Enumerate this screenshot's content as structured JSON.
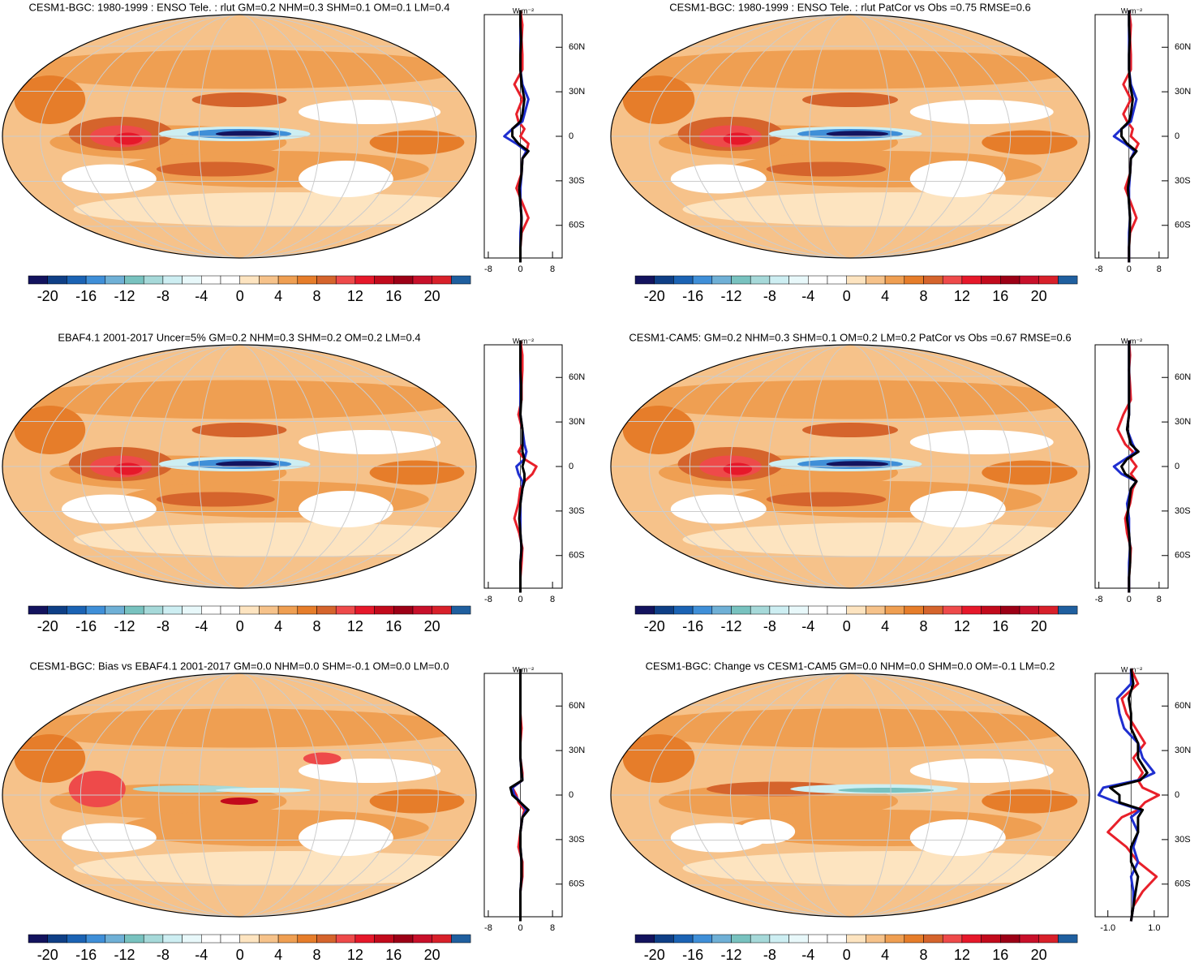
{
  "colorbar": {
    "levels": [
      -20,
      -18,
      -16,
      -14,
      -12,
      -10,
      -8,
      -6,
      -4,
      -2,
      0,
      2,
      4,
      6,
      8,
      10,
      12,
      14,
      16,
      18,
      20
    ],
    "colors": [
      "#13135e",
      "#0f3f86",
      "#1b63b4",
      "#3f8fd8",
      "#6fb0d6",
      "#78c2bf",
      "#a6d9d9",
      "#cdeef2",
      "#e8f8fa",
      "#ffffff",
      "#ffffff",
      "#fde4c0",
      "#f6c28a",
      "#ef9f52",
      "#e67d2a",
      "#d5642c",
      "#ee4a4a",
      "#e6182a",
      "#c20a1c",
      "#9c0016",
      "#c8102a",
      "#d8202a",
      "#1f5f9f"
    ],
    "labels": [
      -20,
      -16,
      -12,
      -8,
      -4,
      0,
      4,
      8,
      12,
      16,
      20
    ]
  },
  "panels": [
    {
      "title": "CESM1-BGC: 1980-1999 : ENSO Tele. : rlut GM=0.2 NHM=0.3 SHM=0.1 OM=0.1 LM=0.4",
      "zonal": {
        "x_label": "W m⁻²",
        "xlim": [
          -9,
          10.4
        ],
        "xticks": [
          -8,
          0,
          8
        ],
        "ylim": [
          -82,
          82
        ],
        "yticks": [
          {
            "value": 60,
            "label": "60N"
          },
          {
            "value": 30,
            "label": "30N"
          },
          0,
          {
            "value": -30,
            "label": "30S"
          },
          {
            "value": -60,
            "label": "60S"
          }
        ],
        "lat": [
          -85,
          -75,
          -65,
          -55,
          -45,
          -35,
          -25,
          -15,
          -10,
          -5,
          0,
          5,
          10,
          15,
          25,
          35,
          45,
          55,
          65,
          75,
          85
        ],
        "series": [
          {
            "color": "#e8202a",
            "values": [
              0,
              0,
              0.3,
              2,
              0.5,
              -1,
              0.3,
              0.5,
              1.5,
              2,
              0,
              1,
              -0.5,
              -1,
              0.5,
              -1.5,
              0.5,
              0.5,
              0.3,
              0.5,
              0
            ]
          },
          {
            "color": "#1f2fd0",
            "values": [
              0,
              0,
              0,
              0.3,
              0,
              0,
              0.3,
              0.5,
              1.5,
              -1,
              -4,
              -2,
              0.5,
              1,
              2,
              0.5,
              0,
              0,
              0,
              0,
              0
            ]
          },
          {
            "color": "#000000",
            "values": [
              0,
              0,
              0.2,
              0.3,
              0,
              -0.3,
              0.3,
              0.5,
              2,
              -0.5,
              -2,
              -2,
              0,
              0.5,
              1,
              0.3,
              0,
              0,
              0.2,
              0,
              0
            ]
          }
        ]
      }
    },
    {
      "title": "CESM1-BGC: 1980-1999 : ENSO Tele. : rlut PatCor vs Obs =0.75 RMSE=0.6",
      "zonal": {
        "x_label": "W m⁻²",
        "xlim": [
          -9,
          10.4
        ],
        "xticks": [
          -8,
          0,
          8
        ],
        "ylim": [
          -82,
          82
        ],
        "yticks": [
          {
            "value": 60,
            "label": "60N"
          },
          {
            "value": 30,
            "label": "30N"
          },
          0,
          {
            "value": -30,
            "label": "30S"
          },
          {
            "value": -60,
            "label": "60S"
          }
        ],
        "lat": [
          -85,
          -75,
          -65,
          -55,
          -45,
          -35,
          -25,
          -15,
          -10,
          -5,
          0,
          5,
          10,
          15,
          25,
          35,
          45,
          55,
          65,
          75,
          85
        ],
        "series": [
          {
            "color": "#e8202a",
            "values": [
              0,
              0,
              0.3,
              2,
              0.5,
              -1,
              0.3,
              0.5,
              1.5,
              2.5,
              0.5,
              1,
              -0.5,
              -1.5,
              0.5,
              -1.5,
              0.5,
              0.5,
              0.3,
              0.5,
              0
            ]
          },
          {
            "color": "#1f2fd0",
            "values": [
              0,
              0,
              0,
              0.3,
              0,
              0,
              0.3,
              0.5,
              1.5,
              -1,
              -4,
              -2,
              0.5,
              1,
              2,
              0.5,
              0,
              0,
              0,
              0,
              0
            ]
          },
          {
            "color": "#000000",
            "values": [
              0,
              0,
              0.2,
              0.3,
              0,
              -0.3,
              0.3,
              0.5,
              2,
              -0.5,
              -2,
              -2,
              0,
              0.5,
              1,
              0.3,
              0,
              0,
              0.2,
              0,
              0
            ]
          }
        ]
      }
    },
    {
      "title": "EBAF4.1 2001-2017 Uncer=5% GM=0.2 NHM=0.3 SHM=0.2 OM=0.2 LM=0.4",
      "zonal": {
        "x_label": "W m⁻²",
        "xlim": [
          -9,
          10.4
        ],
        "xticks": [
          -8,
          0,
          8
        ],
        "ylim": [
          -82,
          82
        ],
        "yticks": [
          {
            "value": 60,
            "label": "60N"
          },
          {
            "value": 30,
            "label": "30N"
          },
          0,
          {
            "value": -30,
            "label": "30S"
          },
          {
            "value": -60,
            "label": "60S"
          }
        ],
        "lat": [
          -85,
          -75,
          -65,
          -55,
          -45,
          -35,
          -25,
          -15,
          -10,
          -5,
          0,
          5,
          10,
          15,
          25,
          35,
          45,
          55,
          65,
          75,
          85
        ],
        "series": [
          {
            "color": "#e8202a",
            "values": [
              0,
              0,
              0.3,
              0.5,
              -0.3,
              -1.5,
              -0.5,
              0,
              1,
              3,
              4,
              1,
              -0.5,
              0.5,
              0.5,
              -0.5,
              0.3,
              0.3,
              0.5,
              0.5,
              0
            ]
          },
          {
            "color": "#1f2fd0",
            "values": [
              0,
              0,
              0,
              0.3,
              0,
              0,
              0,
              0.5,
              0.5,
              -0.5,
              -1,
              1,
              1.5,
              1,
              0.5,
              0,
              0,
              0,
              0,
              0,
              0
            ]
          },
          {
            "color": "#000000",
            "values": [
              0,
              0,
              0,
              0.3,
              0,
              -0.3,
              0,
              0.5,
              1,
              1,
              0.5,
              1,
              0.5,
              0.5,
              0.5,
              0,
              0.2,
              0.2,
              0,
              0,
              0
            ]
          }
        ]
      }
    },
    {
      "title": "CESM1-CAM5: GM=0.2 NHM=0.3 SHM=0.1 OM=0.2 LM=0.2 PatCor vs Obs =0.67 RMSE=0.6",
      "zonal": {
        "x_label": "W m⁻²",
        "xlim": [
          -9,
          10.4
        ],
        "xticks": [
          -8,
          0,
          8
        ],
        "ylim": [
          -82,
          82
        ],
        "yticks": [
          {
            "value": 60,
            "label": "60N"
          },
          {
            "value": 30,
            "label": "30N"
          },
          0,
          {
            "value": -30,
            "label": "30S"
          },
          {
            "value": -60,
            "label": "60S"
          }
        ],
        "lat": [
          -85,
          -75,
          -65,
          -55,
          -45,
          -35,
          -25,
          -15,
          -10,
          -5,
          0,
          5,
          10,
          15,
          25,
          35,
          45,
          55,
          65,
          75,
          85
        ],
        "series": [
          {
            "color": "#e8202a",
            "values": [
              0,
              0,
              0.3,
              0.5,
              -0.5,
              -1,
              0.3,
              1,
              2,
              0.5,
              2,
              0.5,
              1,
              -1,
              -3,
              -1.5,
              0.5,
              0.3,
              0,
              0.3,
              0
            ]
          },
          {
            "color": "#1f2fd0",
            "values": [
              0,
              0,
              0,
              0.3,
              0,
              0,
              -0.5,
              0.5,
              2,
              -2,
              -4,
              -1,
              2,
              1,
              -0.5,
              0,
              0,
              0,
              0,
              0,
              0
            ]
          },
          {
            "color": "#000000",
            "values": [
              0,
              0,
              0.3,
              0.3,
              0,
              -0.5,
              0,
              0.5,
              2,
              -1,
              -2,
              -0.5,
              2.5,
              0.5,
              -0.5,
              0,
              0,
              0,
              0,
              0,
              0
            ]
          }
        ]
      }
    },
    {
      "title": "CESM1-BGC: Bias vs EBAF4.1 2001-2017 GM=0.0 NHM=0.0 SHM=-0.1 OM=0.0 LM=0.0",
      "zonal": {
        "x_label": "W m⁻²",
        "xlim": [
          -9,
          10.4
        ],
        "xticks": [
          -8,
          0,
          8
        ],
        "ylim": [
          -82,
          82
        ],
        "yticks": [
          {
            "value": 60,
            "label": "60N"
          },
          {
            "value": 30,
            "label": "30N"
          },
          0,
          {
            "value": -30,
            "label": "30S"
          },
          {
            "value": -60,
            "label": "60S"
          }
        ],
        "lat": [
          -85,
          -75,
          -65,
          -55,
          -45,
          -35,
          -25,
          -15,
          -10,
          -5,
          0,
          5,
          10,
          15,
          25,
          35,
          45,
          55,
          65,
          75,
          85
        ],
        "series": [
          {
            "color": "#e8202a",
            "values": [
              0,
              0,
              0,
              0.5,
              0.5,
              -0.5,
              0,
              0.5,
              1,
              -0.5,
              -1,
              -2,
              0.5,
              0.5,
              0,
              0,
              0.3,
              0,
              0,
              0,
              0
            ]
          },
          {
            "color": "#1f2fd0",
            "values": [
              0,
              0,
              0,
              0.3,
              0.3,
              0,
              0,
              0.5,
              1.5,
              0,
              -1.5,
              -2,
              0.5,
              0.3,
              0,
              0,
              0,
              0,
              0,
              0,
              0
            ]
          },
          {
            "color": "#000000",
            "values": [
              0,
              0,
              0,
              0.3,
              0.3,
              0,
              0,
              0.5,
              2,
              0,
              -2,
              -2.5,
              0.5,
              0.3,
              0,
              0,
              0,
              0,
              0,
              0,
              0
            ]
          }
        ]
      }
    },
    {
      "title": "CESM1-BGC: Change vs CESM1-CAM5 GM=0.0 NHM=0.0 SHM=0.0 OM=-0.1 LM=0.2",
      "zonal": {
        "x_label": "W m⁻²",
        "xlim": [
          -1.55,
          1.6
        ],
        "xticks": [
          {
            "value": -1,
            "label": "-1.0"
          },
          {
            "value": 1,
            "label": "1.0"
          }
        ],
        "ylim": [
          -82,
          82
        ],
        "yticks": [
          {
            "value": 60,
            "label": "60N"
          },
          {
            "value": 30,
            "label": "30N"
          },
          0,
          {
            "value": -30,
            "label": "30S"
          },
          {
            "value": -60,
            "label": "60S"
          }
        ],
        "lat": [
          -85,
          -75,
          -65,
          -55,
          -45,
          -35,
          -25,
          -15,
          -10,
          -5,
          0,
          5,
          10,
          15,
          25,
          35,
          45,
          55,
          65,
          75,
          85
        ],
        "series": [
          {
            "color": "#e8202a",
            "values": [
              0,
              0.1,
              0.5,
              1.1,
              0.3,
              -0.2,
              -1,
              -0.4,
              0.3,
              0.6,
              1.2,
              0.5,
              0.3,
              0.5,
              0.1,
              0.6,
              0.2,
              -0.2,
              -0.4,
              0.3,
              0
            ]
          },
          {
            "color": "#1f2fd0",
            "values": [
              0,
              0.1,
              0.1,
              0,
              0.3,
              0.1,
              0.3,
              0,
              0.4,
              -0.6,
              -1.4,
              -1.2,
              0.3,
              1,
              0.5,
              0.3,
              -0.3,
              -0.5,
              -0.6,
              0,
              0
            ]
          },
          {
            "color": "#000000",
            "values": [
              0,
              0.1,
              0.2,
              0.3,
              0,
              0,
              0.3,
              0.3,
              0.5,
              -0.5,
              -0.5,
              -0.9,
              0.4,
              0.7,
              0.3,
              0.3,
              0,
              0,
              -0.1,
              0.1,
              0
            ]
          }
        ]
      }
    }
  ]
}
